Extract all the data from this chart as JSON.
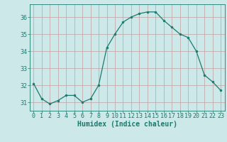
{
  "x": [
    0,
    1,
    2,
    3,
    4,
    5,
    6,
    7,
    8,
    9,
    10,
    11,
    12,
    13,
    14,
    15,
    16,
    17,
    18,
    19,
    20,
    21,
    22,
    23
  ],
  "y": [
    32.1,
    31.2,
    30.9,
    31.1,
    31.4,
    31.4,
    31.0,
    31.2,
    32.0,
    34.2,
    35.0,
    35.7,
    36.0,
    36.2,
    36.3,
    36.3,
    35.8,
    35.4,
    35.0,
    34.8,
    34.0,
    32.6,
    32.2,
    31.7
  ],
  "line_color": "#1a7a6e",
  "marker": "o",
  "marker_size": 2.0,
  "bg_color": "#cce8e8",
  "grid_color": "#c0a0a0",
  "xlabel": "Humidex (Indice chaleur)",
  "ylim": [
    30.5,
    36.75
  ],
  "xlim": [
    -0.5,
    23.5
  ],
  "yticks": [
    31,
    32,
    33,
    34,
    35,
    36
  ],
  "xticks": [
    0,
    1,
    2,
    3,
    4,
    5,
    6,
    7,
    8,
    9,
    10,
    11,
    12,
    13,
    14,
    15,
    16,
    17,
    18,
    19,
    20,
    21,
    22,
    23
  ],
  "tick_color": "#1a7a6e",
  "label_fontsize": 7.0,
  "tick_fontsize": 6.0
}
